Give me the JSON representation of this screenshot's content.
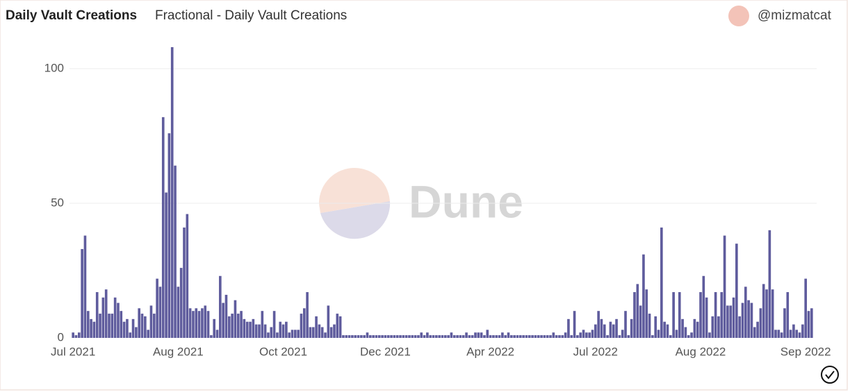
{
  "chart_data": {
    "type": "bar",
    "title": "Daily Vault Creations",
    "subtitle": "Fractional - Daily Vault Creations",
    "author": "@mizmatcat",
    "watermark": "Dune",
    "color": "#5f5c9d",
    "grid": true,
    "ylim": [
      0,
      110
    ],
    "yticks": [
      0,
      50,
      100
    ],
    "categories": [
      "Jul 2021",
      null,
      null,
      null,
      null,
      null,
      null,
      null,
      null,
      null,
      null,
      null,
      null,
      null,
      null,
      null,
      null,
      null,
      null,
      null,
      null,
      null,
      null,
      null,
      null,
      null,
      null,
      null,
      null,
      null,
      null,
      null,
      null,
      null,
      null,
      "Aug 2021",
      null,
      null,
      null,
      null,
      null,
      null,
      null,
      null,
      null,
      null,
      null,
      null,
      null,
      null,
      null,
      null,
      null,
      null,
      null,
      null,
      null,
      null,
      null,
      null,
      null,
      null,
      null,
      null,
      null,
      null,
      null,
      null,
      null,
      null,
      "Oct 2021",
      null,
      null,
      null,
      null,
      null,
      null,
      null,
      null,
      null,
      null,
      null,
      null,
      null,
      null,
      null,
      null,
      null,
      null,
      null,
      null,
      null,
      null,
      null,
      null,
      null,
      null,
      null,
      null,
      null,
      null,
      null,
      null,
      null,
      "Dec 2021",
      null,
      null,
      null,
      null,
      null,
      null,
      null,
      null,
      null,
      null,
      null,
      null,
      null,
      null,
      null,
      null,
      null,
      null,
      null,
      null,
      null,
      null,
      null,
      null,
      null,
      null,
      null,
      null,
      null,
      null,
      null,
      null,
      null,
      null,
      "Apr 2022",
      null,
      null,
      null,
      null,
      null,
      null,
      null,
      null,
      null,
      null,
      null,
      null,
      null,
      null,
      null,
      null,
      null,
      null,
      null,
      null,
      null,
      null,
      null,
      null,
      null,
      null,
      null,
      null,
      null,
      null,
      null,
      null,
      null,
      null,
      "Jul 2022",
      null,
      null,
      null,
      null,
      null,
      null,
      null,
      null,
      null,
      null,
      null,
      null,
      null,
      null,
      null,
      null,
      null,
      null,
      null,
      null,
      null,
      null,
      null,
      null,
      null,
      null,
      null,
      null,
      null,
      null,
      null,
      null,
      null,
      null,
      "Aug 2022",
      null,
      null,
      null,
      null,
      null,
      null,
      null,
      null,
      null,
      null,
      null,
      null,
      null,
      null,
      null,
      null,
      null,
      null,
      null,
      null,
      null,
      null,
      null,
      null,
      null,
      null,
      null,
      null,
      null,
      null,
      null,
      null,
      null,
      null,
      "Sep 2022",
      null,
      null
    ],
    "values": [
      2,
      1,
      2,
      33,
      38,
      10,
      7,
      6,
      17,
      9,
      15,
      18,
      9,
      9,
      15,
      13,
      10,
      6,
      7,
      2,
      7,
      4,
      11,
      9,
      8,
      3,
      12,
      9,
      22,
      19,
      82,
      54,
      76,
      108,
      64,
      19,
      26,
      41,
      46,
      11,
      10,
      11,
      10,
      11,
      12,
      10,
      1,
      7,
      3,
      23,
      13,
      16,
      8,
      9,
      14,
      9,
      10,
      7,
      6,
      6,
      7,
      5,
      5,
      10,
      5,
      2,
      4,
      10,
      2,
      6,
      5,
      6,
      2,
      3,
      3,
      3,
      9,
      11,
      17,
      4,
      4,
      8,
      5,
      4,
      2,
      12,
      4,
      5,
      9,
      8,
      1,
      1,
      1,
      1,
      1,
      1,
      1,
      1,
      2,
      1,
      1,
      1,
      1,
      1,
      1,
      1,
      1,
      1,
      1,
      1,
      1,
      1,
      1,
      1,
      1,
      1,
      2,
      1,
      2,
      1,
      1,
      1,
      1,
      1,
      1,
      1,
      2,
      1,
      1,
      1,
      1,
      2,
      1,
      1,
      2,
      2,
      2,
      1,
      3,
      1,
      1,
      1,
      1,
      2,
      1,
      2,
      1,
      1,
      1,
      1,
      1,
      1,
      1,
      1,
      1,
      1,
      1,
      1,
      1,
      1,
      2,
      1,
      1,
      1,
      2,
      7,
      1,
      10,
      1,
      2,
      3,
      2,
      2,
      3,
      5,
      10,
      7,
      5,
      1,
      6,
      5,
      7,
      1,
      3,
      10,
      1,
      7,
      17,
      20,
      12,
      31,
      18,
      9,
      1,
      8,
      3,
      41,
      6,
      5,
      1,
      17,
      3,
      17,
      7,
      4,
      1,
      2,
      7,
      6,
      17,
      23,
      15,
      2,
      8,
      17,
      8,
      17,
      38,
      12,
      12,
      15,
      35,
      8,
      13,
      19,
      14,
      13,
      4,
      6,
      11,
      20,
      18,
      40,
      18,
      3,
      3,
      2,
      11,
      17,
      3,
      5,
      3,
      2,
      5,
      22,
      10,
      11
    ]
  }
}
